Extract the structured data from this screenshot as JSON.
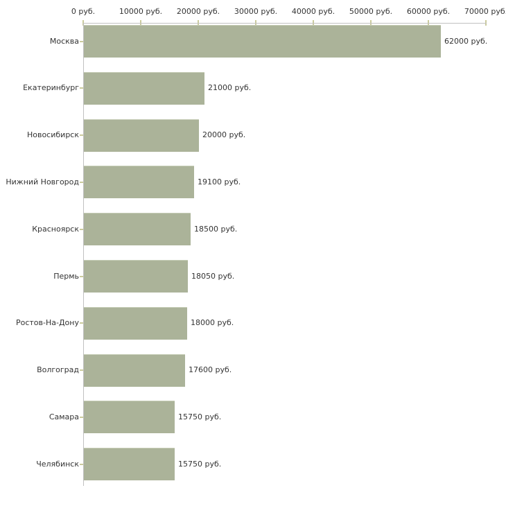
{
  "chart_data": {
    "type": "bar",
    "orientation": "horizontal",
    "title": "",
    "xlabel": "",
    "ylabel": "",
    "unit": "руб.",
    "xlim": [
      0,
      70000
    ],
    "x_tick_step": 10000,
    "x_ticks": [
      0,
      10000,
      20000,
      30000,
      40000,
      50000,
      60000,
      70000
    ],
    "x_tick_labels": [
      "0 руб.",
      "10000 руб.",
      "20000 руб.",
      "30000 руб.",
      "40000 руб.",
      "50000 руб.",
      "60000 руб.",
      "70000 руб."
    ],
    "categories": [
      "Москва",
      "Екатеринбург",
      "Новосибирск",
      "Нижний Новгород",
      "Красноярск",
      "Пермь",
      "Ростов-На-Дону",
      "Волгоград",
      "Самара",
      "Челябинск"
    ],
    "values": [
      62000,
      21000,
      20000,
      19100,
      18500,
      18050,
      18000,
      17600,
      15750,
      15750
    ],
    "value_labels": [
      "62000 руб.",
      "21000 руб.",
      "20000 руб.",
      "19100 руб.",
      "18500 руб.",
      "18050 руб.",
      "18000 руб.",
      "17600 руб.",
      "15750 руб.",
      "15750 руб."
    ],
    "legend": null,
    "grid": false,
    "colors": {
      "bar": "#abb399",
      "bar_edge": "#c6cdb6",
      "axis": "#c0c0c0",
      "tick": "#cbcb9c",
      "text": "#333333",
      "background": "#ffffff"
    }
  }
}
